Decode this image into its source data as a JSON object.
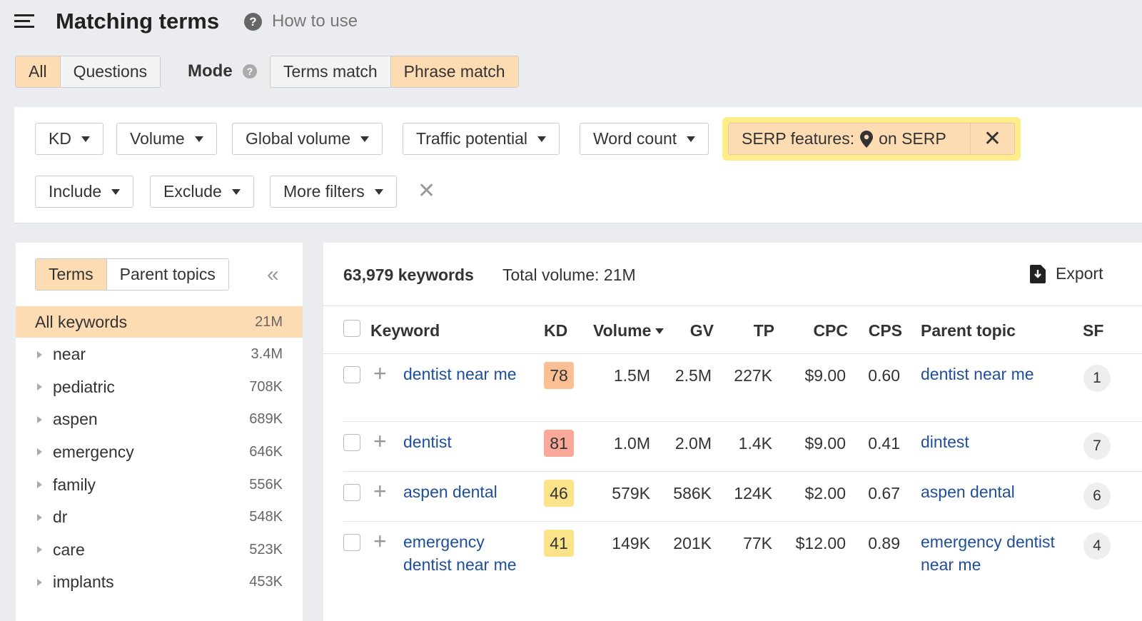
{
  "header": {
    "title": "Matching terms",
    "how_to_use": "How to use"
  },
  "type_tabs": [
    {
      "label": "All",
      "active": true
    },
    {
      "label": "Questions",
      "active": false
    }
  ],
  "mode": {
    "label": "Mode",
    "tabs": [
      {
        "label": "Terms match",
        "active": false
      },
      {
        "label": "Phrase match",
        "active": true
      }
    ]
  },
  "filters": {
    "row1": [
      "KD",
      "Volume",
      "Global volume",
      "Traffic potential",
      "Word count"
    ],
    "serp": {
      "label": "SERP features:",
      "value": "on SERP",
      "icon": "location-pin-icon"
    },
    "row2": [
      "Include",
      "Exclude",
      "More filters"
    ]
  },
  "sidebar": {
    "tabs": [
      {
        "label": "Terms",
        "active": true
      },
      {
        "label": "Parent topics",
        "active": false
      }
    ],
    "items": [
      {
        "label": "All keywords",
        "count": "21M",
        "active": true
      },
      {
        "label": "near",
        "count": "3.4M"
      },
      {
        "label": "pediatric",
        "count": "708K"
      },
      {
        "label": "aspen",
        "count": "689K"
      },
      {
        "label": "emergency",
        "count": "646K"
      },
      {
        "label": "family",
        "count": "556K"
      },
      {
        "label": "dr",
        "count": "548K"
      },
      {
        "label": "care",
        "count": "523K"
      },
      {
        "label": "implants",
        "count": "453K"
      }
    ]
  },
  "results": {
    "count": "63,979 keywords",
    "total": "Total volume: 21M",
    "export": "Export",
    "columns": [
      "Keyword",
      "KD",
      "Volume",
      "GV",
      "TP",
      "CPC",
      "CPS",
      "Parent topic",
      "SF"
    ],
    "rows": [
      {
        "keyword": "dentist near me",
        "kd": "78",
        "kd_color": "#fbbf94",
        "volume": "1.5M",
        "gv": "2.5M",
        "tp": "227K",
        "cpc": "$9.00",
        "cps": "0.60",
        "parent": "dentist near me",
        "sf": "1"
      },
      {
        "keyword": "dentist",
        "kd": "81",
        "kd_color": "#f9a99a",
        "volume": "1.0M",
        "gv": "2.0M",
        "tp": "1.4K",
        "cpc": "$9.00",
        "cps": "0.41",
        "parent": "dintest",
        "sf": "7"
      },
      {
        "keyword": "aspen dental",
        "kd": "46",
        "kd_color": "#fbe38a",
        "volume": "579K",
        "gv": "586K",
        "tp": "124K",
        "cpc": "$2.00",
        "cps": "0.67",
        "parent": "aspen dental",
        "sf": "6"
      },
      {
        "keyword": "emergency dentist near me",
        "kd": "41",
        "kd_color": "#fbe38a",
        "volume": "149K",
        "gv": "201K",
        "tp": "77K",
        "cpc": "$12.00",
        "cps": "0.89",
        "parent": "emergency dentist near me",
        "sf": "4"
      }
    ]
  },
  "colors": {
    "accent": "#fddcb4",
    "highlight": "#fdee8a",
    "link": "#1f4e9a"
  }
}
